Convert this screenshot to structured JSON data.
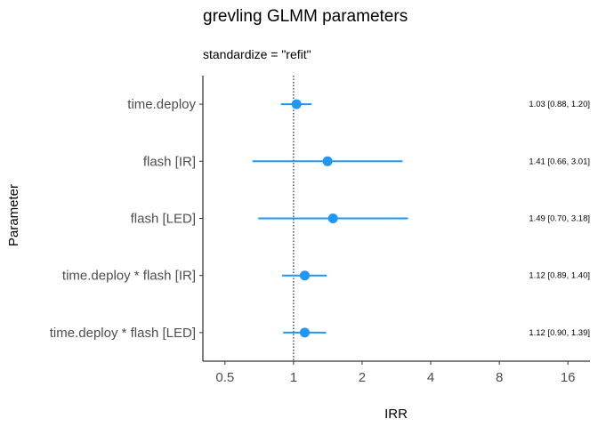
{
  "chart_data": {
    "type": "forest",
    "title": "grevling GLMM parameters",
    "subtitle": "standardize  = \"refit\"",
    "xlabel": "IRR",
    "ylabel": "Parameter",
    "x_scale": "log2",
    "xlim": [
      0.4,
      20
    ],
    "x_ticks": [
      0.5,
      1,
      2,
      4,
      8,
      16
    ],
    "x_tick_labels": [
      "0.5",
      "1",
      "2",
      "4",
      "8",
      "16"
    ],
    "reference_line": 1,
    "grid": false,
    "point_color": "#2196f3",
    "parameters": [
      {
        "name": "time.deploy",
        "estimate": 1.03,
        "ci_low": 0.88,
        "ci_high": 1.2,
        "label": "1.03 [0.88, 1.20]"
      },
      {
        "name": "flash [IR]",
        "estimate": 1.41,
        "ci_low": 0.66,
        "ci_high": 3.01,
        "label": "1.41 [0.66, 3.01]"
      },
      {
        "name": "flash [LED]",
        "estimate": 1.49,
        "ci_low": 0.7,
        "ci_high": 3.18,
        "label": "1.49 [0.70, 3.18]"
      },
      {
        "name": "time.deploy * flash [IR]",
        "estimate": 1.12,
        "ci_low": 0.89,
        "ci_high": 1.4,
        "label": "1.12 [0.89, 1.40]"
      },
      {
        "name": "time.deploy * flash [LED]",
        "estimate": 1.12,
        "ci_low": 0.9,
        "ci_high": 1.39,
        "label": "1.12 [0.90, 1.39]"
      }
    ]
  }
}
